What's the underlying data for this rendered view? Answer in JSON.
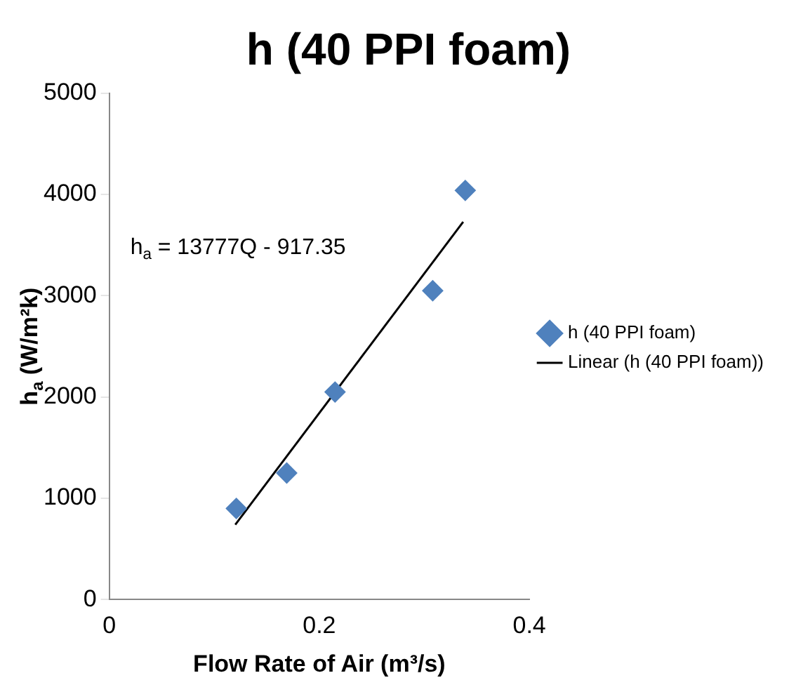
{
  "chart_data": {
    "type": "scatter",
    "title": "h (40 PPI foam)",
    "xlabel": "Flow Rate of Air (m³/s)",
    "ylabel": "h$_{a}$ (W/m²k)",
    "annotations": [
      "h$_{a}$ = 13777Q - 917.35"
    ],
    "xlim": [
      0,
      0.4
    ],
    "xticks": [
      0,
      0.2,
      0.4
    ],
    "ylim": [
      0,
      5000
    ],
    "yticks": [
      0,
      1000,
      2000,
      3000,
      4000,
      5000
    ],
    "grid": false,
    "legend": "right",
    "marker": "diamond",
    "series": [
      {
        "name": "h (40 PPI foam)",
        "color": "#4f81bd",
        "x": [
          0.121,
          0.169,
          0.215,
          0.308,
          0.339
        ],
        "values": [
          900,
          1250,
          2050,
          3050,
          4040
        ]
      },
      {
        "name": "Linear (h (40 PPI foam))",
        "type": "line",
        "color": "#000000",
        "marker": "none",
        "line_style": "solid",
        "x": [
          0.12,
          0.337
        ],
        "values": [
          740,
          3730
        ]
      }
    ]
  }
}
